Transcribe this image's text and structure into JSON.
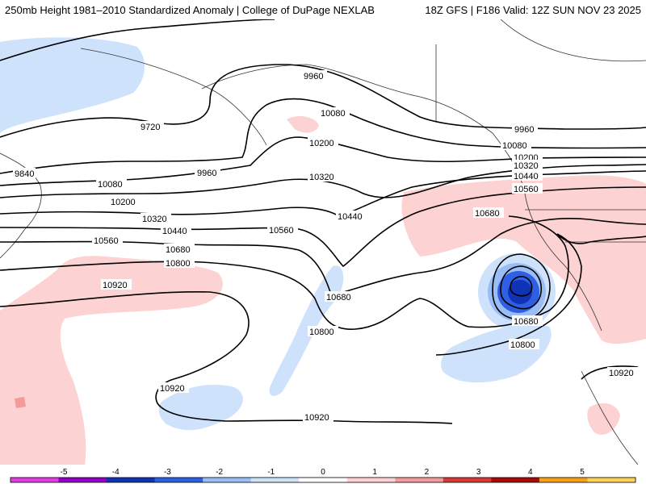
{
  "header": {
    "title_left": "250mb Height 1981–2010 Standardized Anomaly | College of DuPage NEXLAB",
    "title_right": "18Z GFS | F186 Valid: 12Z SUN NOV 23 2025"
  },
  "map": {
    "variable": "250mb geopotential height",
    "units": "m",
    "contour_labels": [
      "9720",
      "9840",
      "9960",
      "9960",
      "9960",
      "10080",
      "10080",
      "10080",
      "10200",
      "10200",
      "10200",
      "10320",
      "10320",
      "10320",
      "10440",
      "10440",
      "10440",
      "10560",
      "10560",
      "10560",
      "10680",
      "10680",
      "10680",
      "10680",
      "10800",
      "10800",
      "10800",
      "10920",
      "10920",
      "10920",
      "10920"
    ]
  },
  "colorbar": {
    "ticks": [
      "-5",
      "-4",
      "-3",
      "-2",
      "-1",
      "0",
      "1",
      "2",
      "3",
      "4",
      "5"
    ],
    "colors": [
      "#e23ee2",
      "#9100c8",
      "#1032b4",
      "#2f5fe3",
      "#9bbdf6",
      "#cfe2fb",
      "#ffffff",
      "#fdd2d2",
      "#f39b9b",
      "#d63a3a",
      "#a60a0a",
      "#f7a21a",
      "#ffd25a"
    ],
    "negative_light": "#cfe2fb",
    "positive_light": "#fdd2d2"
  }
}
